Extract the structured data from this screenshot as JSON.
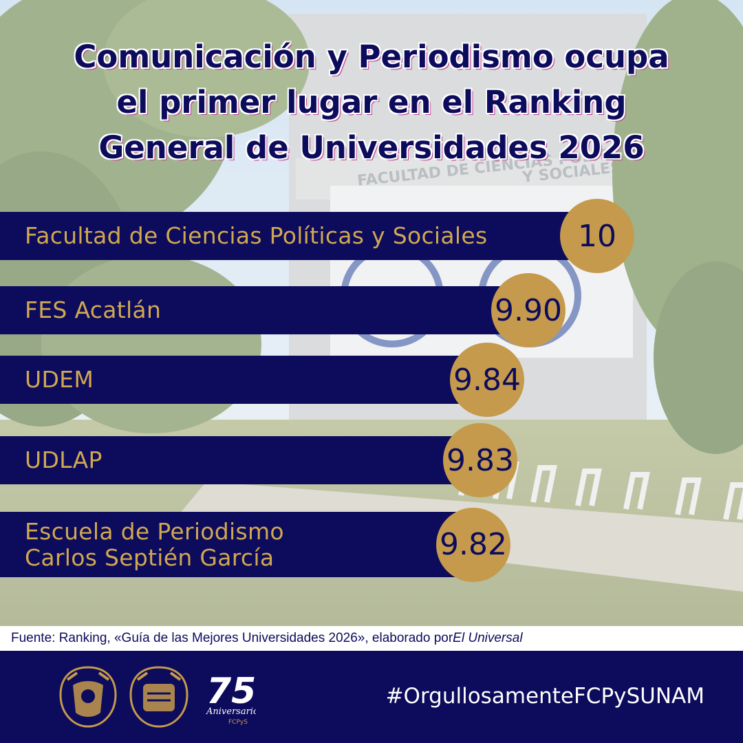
{
  "title": {
    "line1": "Comunicación y Periodismo ocupa",
    "line2": "el primer lugar en el Ranking",
    "line3": "General de Universidades 2026"
  },
  "background": {
    "sign_line1": "FACULTAD DE CIENCIAS POLÍTICAS",
    "sign_line2": "Y SOCIALES"
  },
  "chart_data": {
    "type": "bar",
    "categories": [
      "Facultad de Ciencias Políticas y Sociales",
      "FES Acatlán",
      "UDEM",
      "UDLAP",
      "Escuela de Periodismo\nCarlos Septién García"
    ],
    "values": [
      10,
      9.9,
      9.84,
      9.83,
      9.82
    ],
    "data_labels": [
      "10",
      "9.90",
      "9.84",
      "9.83",
      "9.82"
    ],
    "orientation": "horizontal",
    "bar_color": "#0c0b5c",
    "marker_color": "#c59a4c",
    "label_color": "#d1a851"
  },
  "source": {
    "prefix": "Fuente: Ranking, «Guía de las Mejores Universidades 2026», elaborado por ",
    "publisher": "El Universal"
  },
  "footer": {
    "hashtag": "#OrgullosamenteFCPySUNAM",
    "logos": [
      "unam-seal-icon",
      "fcpys-seal-icon",
      "75-aniversario-logo-icon"
    ],
    "anniversary_logo_number": "75",
    "anniversary_logo_word": "Aniversario",
    "anniversary_logo_abbr": "FCPyS"
  },
  "colors": {
    "navy": "#0c0b5c",
    "gold": "#c59a4c",
    "gold_text": "#d1a851",
    "white": "#ffffff"
  }
}
